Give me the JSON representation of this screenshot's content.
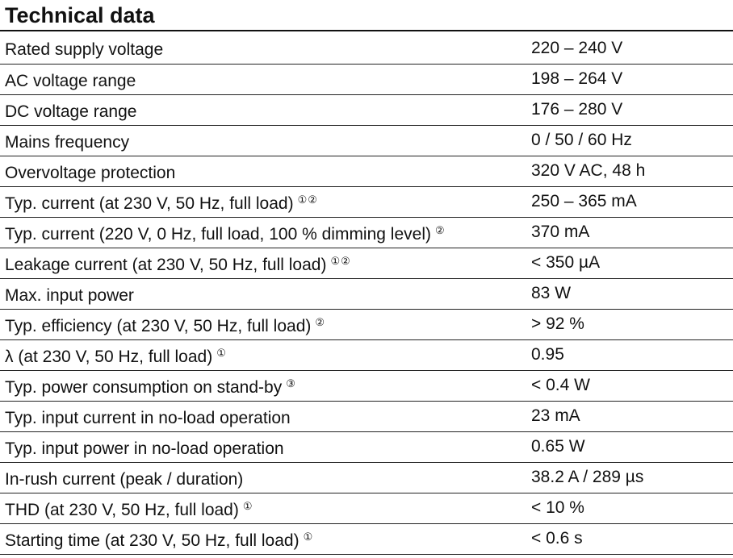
{
  "title": "Technical data",
  "rows": [
    {
      "label": "Rated supply voltage",
      "note": "",
      "value": "220 – 240 V"
    },
    {
      "label": "AC voltage range",
      "note": "",
      "value": "198 – 264 V"
    },
    {
      "label": "DC voltage range",
      "note": "",
      "value": "176 – 280 V"
    },
    {
      "label": "Mains frequency",
      "note": "",
      "value": "0 / 50 / 60 Hz"
    },
    {
      "label": "Overvoltage protection",
      "note": "",
      "value": "320 V AC, 48 h"
    },
    {
      "label": "Typ. current (at 230 V, 50 Hz, full load)",
      "note": "①②",
      "value": "250 – 365 mA"
    },
    {
      "label": "Typ. current (220 V, 0 Hz, full load, 100 % dimming level)",
      "note": "②",
      "value": "370 mA"
    },
    {
      "label": "Leakage current (at 230 V, 50 Hz, full load)",
      "note": "①②",
      "value": "< 350 µA"
    },
    {
      "label": "Max. input power",
      "note": "",
      "value": "83 W"
    },
    {
      "label": "Typ. efficiency (at 230 V, 50 Hz, full load)",
      "note": "②",
      "value": "> 92 %"
    },
    {
      "label": "λ (at 230 V, 50 Hz, full load)",
      "note": "①",
      "value": "0.95"
    },
    {
      "label": "Typ. power consumption on stand-by",
      "note": "③",
      "value": "< 0.4 W"
    },
    {
      "label": "Typ. input current in no-load operation",
      "note": "",
      "value": "23 mA"
    },
    {
      "label": "Typ. input power in no-load operation",
      "note": "",
      "value": "0.65 W"
    },
    {
      "label": "In-rush current (peak / duration)",
      "note": "",
      "value": "38.2 A / 289 µs"
    },
    {
      "label": "THD (at 230 V, 50 Hz, full load)",
      "note": "①",
      "value": "< 10 %"
    },
    {
      "label": "Starting time (at 230 V, 50 Hz, full load)",
      "note": "①",
      "value": "< 0.6 s"
    }
  ]
}
